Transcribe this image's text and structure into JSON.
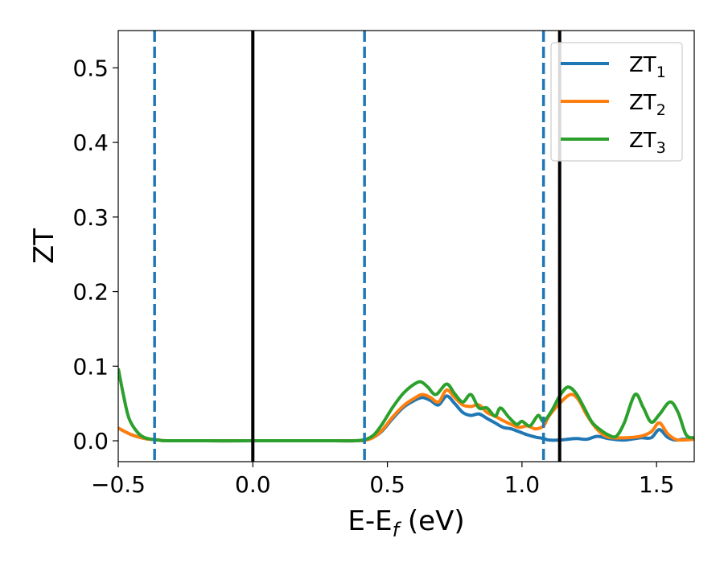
{
  "chart_data": {
    "type": "line",
    "xlabel": {
      "main": "E-E",
      "sub": "f",
      "suffix": " (eV)"
    },
    "ylabel": "ZT",
    "xlim": [
      -0.5,
      1.64
    ],
    "ylim": [
      -0.028,
      0.55
    ],
    "x_ticks": [
      {
        "value": -0.5,
        "label": "−0.5"
      },
      {
        "value": 0.0,
        "label": "0.0"
      },
      {
        "value": 0.5,
        "label": "0.5"
      },
      {
        "value": 1.0,
        "label": "1.0"
      },
      {
        "value": 1.5,
        "label": "1.5"
      }
    ],
    "y_ticks": [
      {
        "value": 0.0,
        "label": "0.0"
      },
      {
        "value": 0.1,
        "label": "0.1"
      },
      {
        "value": 0.2,
        "label": "0.2"
      },
      {
        "value": 0.3,
        "label": "0.3"
      },
      {
        "value": 0.4,
        "label": "0.4"
      },
      {
        "value": 0.5,
        "label": "0.5"
      }
    ],
    "grid": false,
    "legend_position": "top-right",
    "vlines": [
      {
        "x": -0.365,
        "style": "dashed",
        "color": "#1f77b4"
      },
      {
        "x": 0.0,
        "style": "solid",
        "color": "#000000"
      },
      {
        "x": 0.415,
        "style": "dashed",
        "color": "#1f77b4"
      },
      {
        "x": 1.08,
        "style": "dashed",
        "color": "#1f77b4"
      },
      {
        "x": 1.14,
        "style": "solid",
        "color": "#000000"
      }
    ],
    "series": [
      {
        "name": "ZT",
        "sub": "1",
        "color": "#1f77b4",
        "points": [
          [
            -0.5,
            0.017
          ],
          [
            -0.45,
            0.008
          ],
          [
            -0.4,
            0.003
          ],
          [
            -0.35,
            0.001
          ],
          [
            -0.3,
            0.0
          ],
          [
            0.0,
            0.0
          ],
          [
            0.3,
            0.0
          ],
          [
            0.38,
            0.0
          ],
          [
            0.42,
            0.001
          ],
          [
            0.45,
            0.005
          ],
          [
            0.48,
            0.013
          ],
          [
            0.52,
            0.03
          ],
          [
            0.56,
            0.045
          ],
          [
            0.6,
            0.054
          ],
          [
            0.63,
            0.058
          ],
          [
            0.66,
            0.054
          ],
          [
            0.69,
            0.048
          ],
          [
            0.72,
            0.06
          ],
          [
            0.75,
            0.05
          ],
          [
            0.78,
            0.038
          ],
          [
            0.81,
            0.034
          ],
          [
            0.84,
            0.036
          ],
          [
            0.87,
            0.03
          ],
          [
            0.9,
            0.024
          ],
          [
            0.93,
            0.018
          ],
          [
            0.96,
            0.016
          ],
          [
            0.99,
            0.012
          ],
          [
            1.02,
            0.008
          ],
          [
            1.05,
            0.005
          ],
          [
            1.08,
            0.003
          ],
          [
            1.1,
            0.001
          ],
          [
            1.14,
            0.001
          ],
          [
            1.2,
            0.003
          ],
          [
            1.24,
            0.002
          ],
          [
            1.28,
            0.006
          ],
          [
            1.32,
            0.003
          ],
          [
            1.38,
            0.001
          ],
          [
            1.44,
            0.004
          ],
          [
            1.48,
            0.004
          ],
          [
            1.51,
            0.015
          ],
          [
            1.54,
            0.005
          ],
          [
            1.57,
            0.001
          ],
          [
            1.6,
            0.002
          ],
          [
            1.64,
            0.002
          ]
        ]
      },
      {
        "name": "ZT",
        "sub": "2",
        "color": "#ff7f0e",
        "points": [
          [
            -0.5,
            0.017
          ],
          [
            -0.45,
            0.008
          ],
          [
            -0.4,
            0.003
          ],
          [
            -0.35,
            0.001
          ],
          [
            -0.3,
            0.0
          ],
          [
            0.0,
            0.0
          ],
          [
            0.3,
            0.0
          ],
          [
            0.38,
            0.0
          ],
          [
            0.42,
            0.001
          ],
          [
            0.45,
            0.005
          ],
          [
            0.48,
            0.014
          ],
          [
            0.52,
            0.032
          ],
          [
            0.56,
            0.047
          ],
          [
            0.6,
            0.057
          ],
          [
            0.63,
            0.062
          ],
          [
            0.66,
            0.058
          ],
          [
            0.69,
            0.052
          ],
          [
            0.72,
            0.068
          ],
          [
            0.75,
            0.058
          ],
          [
            0.78,
            0.048
          ],
          [
            0.81,
            0.046
          ],
          [
            0.84,
            0.048
          ],
          [
            0.87,
            0.038
          ],
          [
            0.9,
            0.033
          ],
          [
            0.93,
            0.027
          ],
          [
            0.96,
            0.022
          ],
          [
            0.99,
            0.018
          ],
          [
            1.02,
            0.02
          ],
          [
            1.05,
            0.016
          ],
          [
            1.08,
            0.02
          ],
          [
            1.1,
            0.033
          ],
          [
            1.14,
            0.05
          ],
          [
            1.18,
            0.062
          ],
          [
            1.21,
            0.055
          ],
          [
            1.24,
            0.035
          ],
          [
            1.28,
            0.015
          ],
          [
            1.32,
            0.005
          ],
          [
            1.38,
            0.004
          ],
          [
            1.44,
            0.006
          ],
          [
            1.48,
            0.012
          ],
          [
            1.51,
            0.024
          ],
          [
            1.54,
            0.01
          ],
          [
            1.57,
            0.002
          ],
          [
            1.6,
            0.001
          ],
          [
            1.64,
            0.002
          ]
        ]
      },
      {
        "name": "ZT",
        "sub": "3",
        "color": "#2ca02c",
        "points": [
          [
            -0.5,
            0.097
          ],
          [
            -0.48,
            0.06
          ],
          [
            -0.46,
            0.03
          ],
          [
            -0.43,
            0.012
          ],
          [
            -0.4,
            0.004
          ],
          [
            -0.35,
            0.001
          ],
          [
            -0.3,
            0.0
          ],
          [
            0.0,
            0.0
          ],
          [
            0.3,
            0.0
          ],
          [
            0.38,
            0.0
          ],
          [
            0.42,
            0.002
          ],
          [
            0.45,
            0.008
          ],
          [
            0.48,
            0.022
          ],
          [
            0.52,
            0.045
          ],
          [
            0.56,
            0.064
          ],
          [
            0.6,
            0.076
          ],
          [
            0.625,
            0.079
          ],
          [
            0.65,
            0.072
          ],
          [
            0.68,
            0.062
          ],
          [
            0.72,
            0.076
          ],
          [
            0.75,
            0.063
          ],
          [
            0.78,
            0.052
          ],
          [
            0.81,
            0.062
          ],
          [
            0.84,
            0.044
          ],
          [
            0.87,
            0.044
          ],
          [
            0.9,
            0.033
          ],
          [
            0.92,
            0.044
          ],
          [
            0.95,
            0.032
          ],
          [
            0.98,
            0.022
          ],
          [
            1.0,
            0.026
          ],
          [
            1.03,
            0.02
          ],
          [
            1.06,
            0.034
          ],
          [
            1.08,
            0.026
          ],
          [
            1.11,
            0.04
          ],
          [
            1.14,
            0.06
          ],
          [
            1.17,
            0.072
          ],
          [
            1.2,
            0.064
          ],
          [
            1.23,
            0.045
          ],
          [
            1.26,
            0.025
          ],
          [
            1.29,
            0.015
          ],
          [
            1.32,
            0.008
          ],
          [
            1.35,
            0.006
          ],
          [
            1.38,
            0.024
          ],
          [
            1.42,
            0.062
          ],
          [
            1.45,
            0.045
          ],
          [
            1.48,
            0.025
          ],
          [
            1.51,
            0.035
          ],
          [
            1.55,
            0.052
          ],
          [
            1.58,
            0.038
          ],
          [
            1.61,
            0.008
          ],
          [
            1.64,
            0.004
          ]
        ]
      }
    ]
  }
}
